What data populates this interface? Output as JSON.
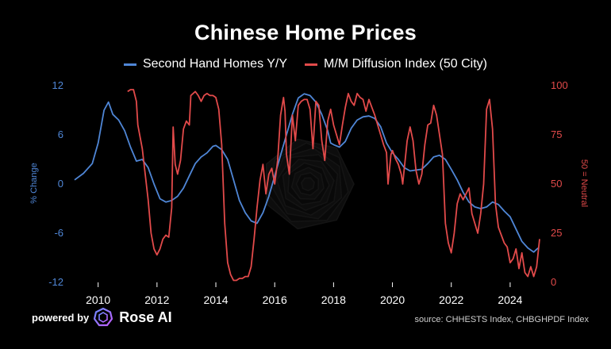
{
  "title": "Chinese Home Prices",
  "legend": [
    {
      "label": "Second Hand Homes Y/Y",
      "color": "#4f86d6"
    },
    {
      "label": "M/M Diffusion Index (50 City)",
      "color": "#e24a4a"
    }
  ],
  "footer": {
    "powered_by": "powered by",
    "brand": "Rose AI",
    "source": "source: CHHESTS Index, CHBGHPDF Index"
  },
  "chart_data": {
    "type": "line",
    "xlabel": "",
    "x_ticks": [
      "2010",
      "2012",
      "2014",
      "2016",
      "2018",
      "2020",
      "2022",
      "2024"
    ],
    "left_axis": {
      "label": "% Change",
      "ticks": [
        "12",
        "6",
        "0",
        "-6",
        "-12"
      ],
      "range": [
        -12,
        12
      ],
      "color": "#4f86d6"
    },
    "right_axis": {
      "label": "50 = Neutral",
      "ticks": [
        "100",
        "75",
        "50",
        "25",
        "0"
      ],
      "range": [
        0,
        100
      ],
      "color": "#e24a4a"
    },
    "grid": false,
    "series": [
      {
        "name": "Second Hand Homes Y/Y",
        "axis": "left",
        "color": "#4f86d6",
        "points": [
          [
            2009.2,
            0.5
          ],
          [
            2009.5,
            1.3
          ],
          [
            2009.8,
            2.5
          ],
          [
            2010.0,
            5.0
          ],
          [
            2010.2,
            9.0
          ],
          [
            2010.35,
            10.0
          ],
          [
            2010.5,
            8.5
          ],
          [
            2010.7,
            7.8
          ],
          [
            2010.9,
            6.5
          ],
          [
            2011.1,
            4.5
          ],
          [
            2011.3,
            2.8
          ],
          [
            2011.5,
            3.0
          ],
          [
            2011.7,
            2.0
          ],
          [
            2011.9,
            0.0
          ],
          [
            2012.1,
            -1.8
          ],
          [
            2012.3,
            -2.2
          ],
          [
            2012.5,
            -2.0
          ],
          [
            2012.7,
            -1.5
          ],
          [
            2012.9,
            -0.5
          ],
          [
            2013.1,
            1.0
          ],
          [
            2013.3,
            2.5
          ],
          [
            2013.5,
            3.3
          ],
          [
            2013.7,
            3.8
          ],
          [
            2013.9,
            4.6
          ],
          [
            2014.0,
            4.7
          ],
          [
            2014.2,
            4.2
          ],
          [
            2014.4,
            3.0
          ],
          [
            2014.6,
            0.5
          ],
          [
            2014.8,
            -2.0
          ],
          [
            2015.0,
            -3.5
          ],
          [
            2015.2,
            -4.5
          ],
          [
            2015.4,
            -4.8
          ],
          [
            2015.6,
            -3.5
          ],
          [
            2015.8,
            -1.5
          ],
          [
            2016.0,
            1.0
          ],
          [
            2016.2,
            3.5
          ],
          [
            2016.4,
            6.0
          ],
          [
            2016.6,
            8.5
          ],
          [
            2016.8,
            10.5
          ],
          [
            2017.0,
            11.0
          ],
          [
            2017.2,
            10.8
          ],
          [
            2017.4,
            10.0
          ],
          [
            2017.6,
            8.5
          ],
          [
            2017.8,
            6.5
          ],
          [
            2017.9,
            5.0
          ],
          [
            2018.0,
            4.8
          ],
          [
            2018.2,
            4.5
          ],
          [
            2018.4,
            5.2
          ],
          [
            2018.6,
            6.8
          ],
          [
            2018.8,
            7.8
          ],
          [
            2019.0,
            8.2
          ],
          [
            2019.2,
            8.3
          ],
          [
            2019.4,
            8.0
          ],
          [
            2019.6,
            7.0
          ],
          [
            2019.8,
            5.0
          ],
          [
            2020.0,
            3.8
          ],
          [
            2020.2,
            3.0
          ],
          [
            2020.4,
            2.0
          ],
          [
            2020.6,
            1.6
          ],
          [
            2020.8,
            1.7
          ],
          [
            2021.0,
            1.8
          ],
          [
            2021.2,
            2.5
          ],
          [
            2021.4,
            3.3
          ],
          [
            2021.6,
            3.5
          ],
          [
            2021.8,
            3.0
          ],
          [
            2022.0,
            1.8
          ],
          [
            2022.2,
            0.5
          ],
          [
            2022.4,
            -1.0
          ],
          [
            2022.6,
            -2.2
          ],
          [
            2022.8,
            -2.8
          ],
          [
            2023.0,
            -3.0
          ],
          [
            2023.2,
            -2.8
          ],
          [
            2023.4,
            -2.2
          ],
          [
            2023.6,
            -2.5
          ],
          [
            2023.8,
            -3.3
          ],
          [
            2024.0,
            -4.0
          ],
          [
            2024.2,
            -5.5
          ],
          [
            2024.4,
            -7.0
          ],
          [
            2024.6,
            -7.8
          ],
          [
            2024.8,
            -8.3
          ],
          [
            2024.95,
            -7.8
          ]
        ]
      },
      {
        "name": "M/M Diffusion Index (50 City)",
        "axis": "right",
        "color": "#e24a4a",
        "points": [
          [
            2011.0,
            97
          ],
          [
            2011.1,
            98
          ],
          [
            2011.2,
            98
          ],
          [
            2011.3,
            92
          ],
          [
            2011.35,
            80
          ],
          [
            2011.5,
            68
          ],
          [
            2011.6,
            55
          ],
          [
            2011.7,
            42
          ],
          [
            2011.8,
            25
          ],
          [
            2011.9,
            17
          ],
          [
            2012.0,
            14
          ],
          [
            2012.1,
            17
          ],
          [
            2012.2,
            22
          ],
          [
            2012.3,
            24
          ],
          [
            2012.4,
            23
          ],
          [
            2012.5,
            38
          ],
          [
            2012.55,
            79
          ],
          [
            2012.62,
            60
          ],
          [
            2012.7,
            55
          ],
          [
            2012.8,
            62
          ],
          [
            2012.9,
            78
          ],
          [
            2013.0,
            82
          ],
          [
            2013.1,
            80
          ],
          [
            2013.15,
            95
          ],
          [
            2013.3,
            97
          ],
          [
            2013.4,
            95
          ],
          [
            2013.5,
            92
          ],
          [
            2013.6,
            95
          ],
          [
            2013.7,
            96
          ],
          [
            2013.8,
            95
          ],
          [
            2013.9,
            95
          ],
          [
            2014.0,
            94
          ],
          [
            2014.1,
            88
          ],
          [
            2014.2,
            70
          ],
          [
            2014.3,
            30
          ],
          [
            2014.4,
            10
          ],
          [
            2014.5,
            4
          ],
          [
            2014.6,
            1
          ],
          [
            2014.7,
            1
          ],
          [
            2014.8,
            2
          ],
          [
            2014.9,
            2
          ],
          [
            2015.0,
            3
          ],
          [
            2015.1,
            3
          ],
          [
            2015.2,
            8
          ],
          [
            2015.3,
            22
          ],
          [
            2015.4,
            38
          ],
          [
            2015.5,
            52
          ],
          [
            2015.6,
            60
          ],
          [
            2015.7,
            45
          ],
          [
            2015.8,
            55
          ],
          [
            2015.9,
            58
          ],
          [
            2016.0,
            50
          ],
          [
            2016.1,
            62
          ],
          [
            2016.2,
            85
          ],
          [
            2016.3,
            94
          ],
          [
            2016.35,
            87
          ],
          [
            2016.4,
            65
          ],
          [
            2016.5,
            55
          ],
          [
            2016.6,
            85
          ],
          [
            2016.7,
            72
          ],
          [
            2016.8,
            90
          ],
          [
            2016.9,
            92
          ],
          [
            2017.0,
            93
          ],
          [
            2017.1,
            93
          ],
          [
            2017.2,
            88
          ],
          [
            2017.3,
            68
          ],
          [
            2017.4,
            92
          ],
          [
            2017.5,
            90
          ],
          [
            2017.6,
            72
          ],
          [
            2017.7,
            62
          ],
          [
            2017.8,
            82
          ],
          [
            2017.9,
            88
          ],
          [
            2018.0,
            80
          ],
          [
            2018.1,
            75
          ],
          [
            2018.2,
            70
          ],
          [
            2018.3,
            80
          ],
          [
            2018.4,
            89
          ],
          [
            2018.5,
            96
          ],
          [
            2018.6,
            92
          ],
          [
            2018.7,
            90
          ],
          [
            2018.8,
            96
          ],
          [
            2018.9,
            94
          ],
          [
            2019.0,
            93
          ],
          [
            2019.1,
            87
          ],
          [
            2019.2,
            93
          ],
          [
            2019.3,
            89
          ],
          [
            2019.4,
            85
          ],
          [
            2019.5,
            80
          ],
          [
            2019.6,
            75
          ],
          [
            2019.7,
            70
          ],
          [
            2019.8,
            66
          ],
          [
            2019.85,
            50
          ],
          [
            2019.95,
            65
          ],
          [
            2020.0,
            67
          ],
          [
            2020.1,
            63
          ],
          [
            2020.2,
            60
          ],
          [
            2020.3,
            55
          ],
          [
            2020.35,
            50
          ],
          [
            2020.5,
            72
          ],
          [
            2020.6,
            79
          ],
          [
            2020.7,
            72
          ],
          [
            2020.8,
            57
          ],
          [
            2020.9,
            50
          ],
          [
            2021.0,
            55
          ],
          [
            2021.1,
            70
          ],
          [
            2021.2,
            80
          ],
          [
            2021.3,
            81
          ],
          [
            2021.4,
            90
          ],
          [
            2021.5,
            85
          ],
          [
            2021.6,
            75
          ],
          [
            2021.7,
            65
          ],
          [
            2021.8,
            30
          ],
          [
            2021.9,
            20
          ],
          [
            2022.0,
            15
          ],
          [
            2022.1,
            25
          ],
          [
            2022.2,
            40
          ],
          [
            2022.3,
            45
          ],
          [
            2022.4,
            42
          ],
          [
            2022.5,
            45
          ],
          [
            2022.6,
            48
          ],
          [
            2022.7,
            35
          ],
          [
            2022.8,
            30
          ],
          [
            2022.9,
            25
          ],
          [
            2023.0,
            35
          ],
          [
            2023.1,
            50
          ],
          [
            2023.2,
            88
          ],
          [
            2023.3,
            93
          ],
          [
            2023.4,
            78
          ],
          [
            2023.5,
            40
          ],
          [
            2023.6,
            28
          ],
          [
            2023.7,
            24
          ],
          [
            2023.8,
            20
          ],
          [
            2023.9,
            18
          ],
          [
            2024.0,
            10
          ],
          [
            2024.1,
            12
          ],
          [
            2024.2,
            17
          ],
          [
            2024.3,
            7
          ],
          [
            2024.4,
            15
          ],
          [
            2024.5,
            5
          ],
          [
            2024.6,
            3
          ],
          [
            2024.7,
            8
          ],
          [
            2024.8,
            3
          ],
          [
            2024.9,
            8
          ],
          [
            2025.0,
            22
          ]
        ]
      }
    ]
  }
}
